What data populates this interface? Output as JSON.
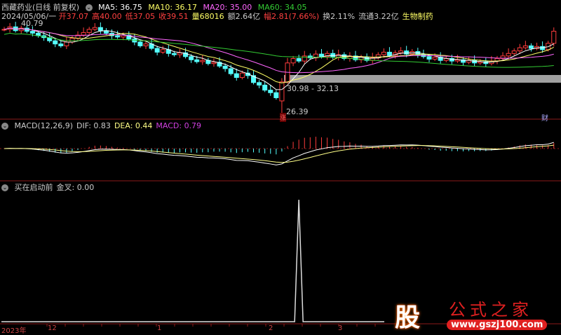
{
  "header": {
    "stock_name": "西藏药业",
    "period": "(日线 前复权)",
    "ma5": "MA5: 36.75",
    "ma10": "MA10: 36.17",
    "ma20": "MA20: 35.00",
    "ma60": "MA60: 34.05"
  },
  "quote": {
    "date": "2024/05/06/一",
    "open": "开37.07",
    "high": "高40.00",
    "low": "低37.05",
    "close": "收39.51",
    "volume": "量68016",
    "amount": "额2.64亿",
    "change": "幅2.81(7.66%)",
    "turnover": "换2.11%",
    "float": "流通3.22亿",
    "sector": "生物制药"
  },
  "price_labels": {
    "high": "40.79",
    "low": "26.39",
    "band": "30.98 - 32.13",
    "low_marker": "涨",
    "fin_marker": "财"
  },
  "macd": {
    "title": "MACD(12,26,9)",
    "dif": "DIF: 0.83",
    "dea": "DEA: 0.44",
    "macd": "MACD: 0.79"
  },
  "indicator": {
    "title": "买在启动前",
    "value": "金叉: 0.00"
  },
  "date_axis": [
    "2023年",
    "12",
    "1",
    "2",
    "3"
  ],
  "logo": {
    "text": "公式之家",
    "char": "股",
    "url": "www.gszj100.com"
  },
  "colors": {
    "up": "#ff3c3c",
    "down": "#54ffff",
    "ma5": "#ffffff",
    "ma10": "#ffff66",
    "ma20": "#ff66ff",
    "ma60": "#33cc33",
    "grid": "#8b1a1a"
  },
  "chart_data": {
    "type": "candlestick",
    "closes": [
      39.8,
      40.2,
      39.6,
      40.0,
      39.5,
      39.2,
      38.8,
      38.5,
      38.0,
      37.5,
      37.2,
      37.8,
      38.4,
      38.9,
      39.3,
      39.8,
      40.1,
      39.6,
      39.2,
      38.8,
      38.6,
      38.9,
      38.3,
      37.8,
      37.2,
      37.5,
      36.8,
      36.2,
      36.6,
      36.0,
      35.8,
      36.1,
      35.5,
      35.0,
      34.7,
      34.9,
      34.4,
      34.6,
      34.0,
      33.6,
      32.8,
      32.2,
      32.9,
      32.5,
      31.4,
      31.0,
      30.2,
      29.8,
      29.0,
      31.5,
      34.5,
      35.2,
      34.8,
      35.6,
      35.3,
      35.9,
      35.5,
      36.0,
      35.4,
      35.8,
      35.2,
      35.6,
      35.0,
      35.4,
      34.9,
      35.3,
      35.8,
      36.2,
      35.7,
      36.1,
      36.4,
      35.9,
      36.3,
      35.8,
      35.5,
      35.1,
      35.4,
      34.9,
      35.2,
      34.8,
      35.0,
      34.6,
      34.9,
      34.5,
      34.7,
      34.4,
      34.8,
      35.2,
      35.6,
      36.0,
      36.4,
      36.9,
      37.2,
      36.8,
      37.1,
      36.6,
      37.6,
      39.51
    ],
    "price_high": 40.79,
    "price_low": 26.39,
    "signal_peak_index": 52
  }
}
